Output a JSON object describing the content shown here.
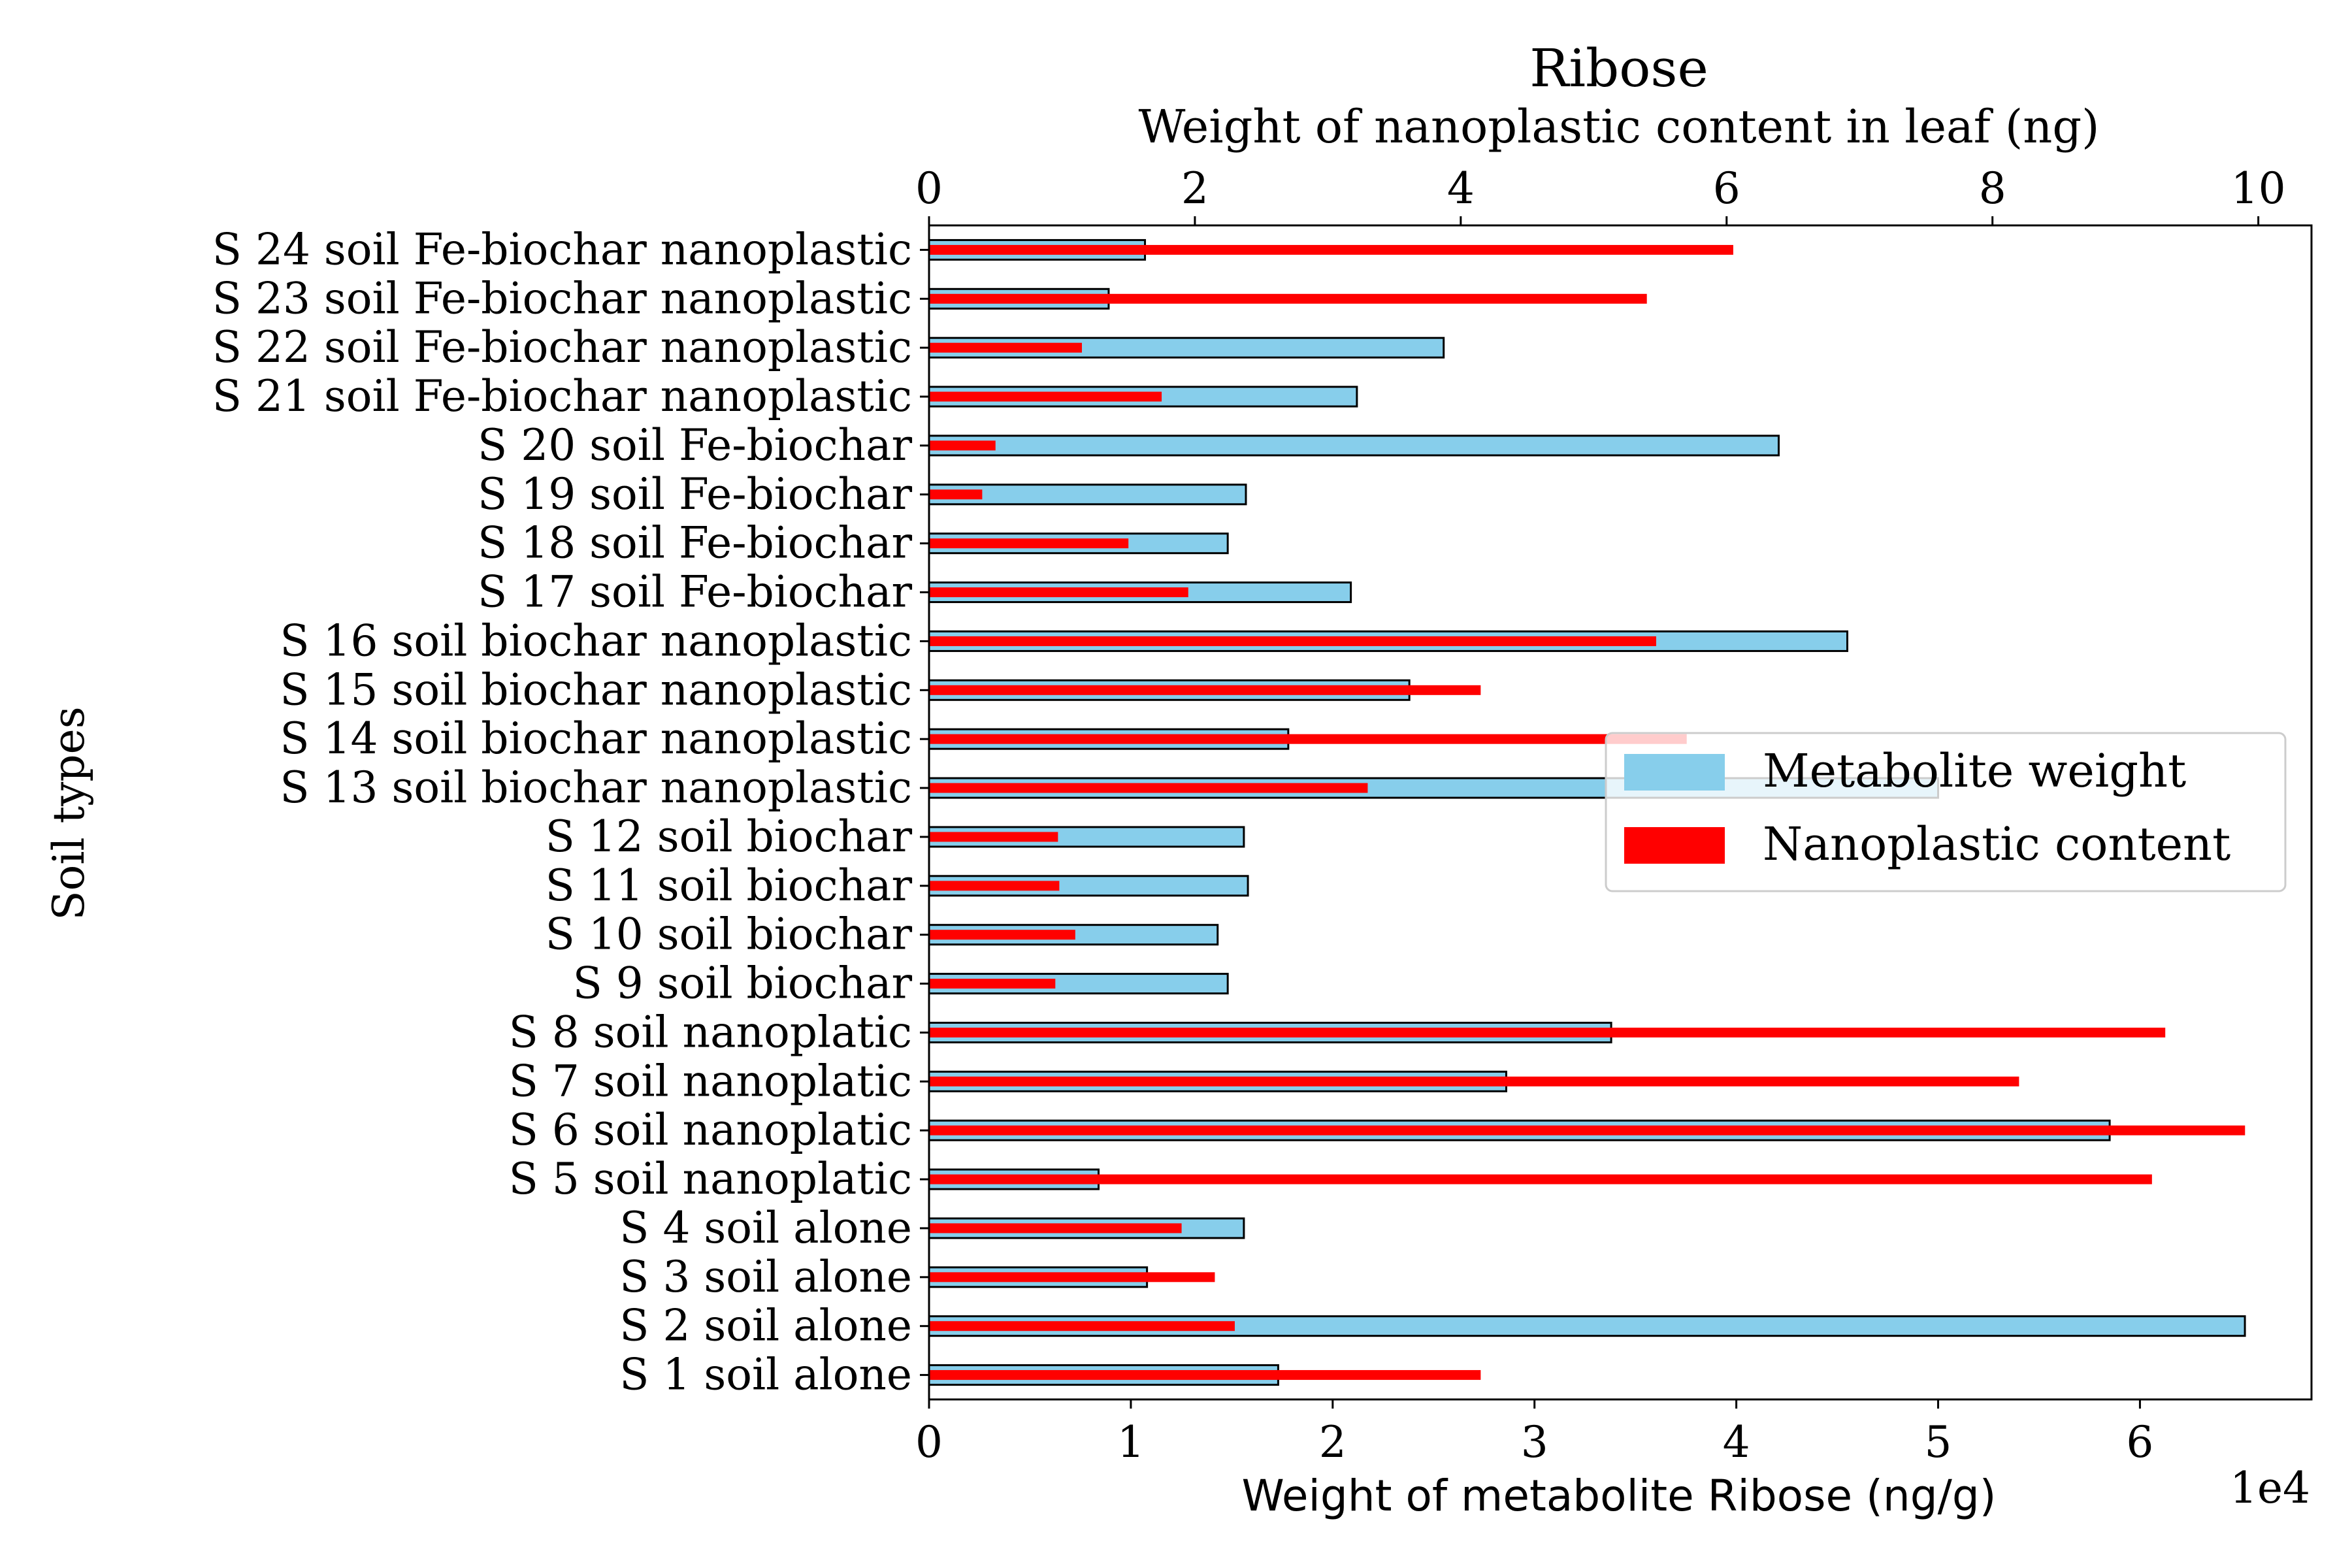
{
  "chart_data": {
    "type": "bar",
    "orientation": "horizontal",
    "title": "Ribose",
    "title_color": "#a52a2a",
    "ylabel": "Soil types",
    "xlabel_bottom": "Weight of metabolite Ribose (ng/g)",
    "xlabel_top": "Weight of nanoplastic content in leaf (ng)",
    "x_offset_label": "1e4",
    "xlim_bottom": [
      0,
      68500
    ],
    "xlim_top": [
      0,
      10.4
    ],
    "xticks_bottom": [
      0,
      1,
      2,
      3,
      4,
      5,
      6
    ],
    "xticks_top": [
      0,
      2,
      4,
      6,
      8,
      10
    ],
    "grid": false,
    "legend_position": "center-right",
    "categories": [
      "S 1 soil alone",
      "S 2 soil alone",
      "S 3 soil alone",
      "S 4 soil alone",
      "S 5 soil nanoplatic",
      "S 6 soil nanoplatic",
      "S 7 soil nanoplatic",
      "S 8 soil nanoplatic",
      "S 9 soil biochar",
      "S 10 soil biochar",
      "S 11 soil biochar",
      "S 12 soil biochar",
      "S 13 soil biochar nanoplastic",
      "S 14 soil biochar nanoplastic",
      "S 15 soil biochar nanoplastic",
      "S 16 soil biochar nanoplastic",
      "S 17 soil Fe-biochar",
      "S 18 soil Fe-biochar",
      "S 19 soil Fe-biochar",
      "S 20 soil Fe-biochar",
      "S 21 soil Fe-biochar nanoplastic",
      "S 22 soil Fe-biochar nanoplastic",
      "S 23 soil Fe-biochar nanoplastic",
      "S 24 soil Fe-biochar nanoplastic"
    ],
    "series": [
      {
        "name": "Metabolite weight",
        "axis": "bottom",
        "color": "#87ceeb",
        "values": [
          17300,
          65200,
          10800,
          15600,
          8400,
          58500,
          28600,
          33800,
          14800,
          14300,
          15800,
          15600,
          50000,
          17800,
          23800,
          45500,
          20900,
          14800,
          15700,
          42100,
          21200,
          25500,
          8900,
          10700
        ]
      },
      {
        "name": "Nanoplastic content",
        "axis": "top",
        "color": "#ff0000",
        "values": [
          4.15,
          2.3,
          2.15,
          1.9,
          9.2,
          9.9,
          8.2,
          9.3,
          0.95,
          1.1,
          0.98,
          0.97,
          3.3,
          5.7,
          4.15,
          5.47,
          1.95,
          1.5,
          0.4,
          0.5,
          1.75,
          1.15,
          5.4,
          6.05
        ]
      }
    ]
  }
}
